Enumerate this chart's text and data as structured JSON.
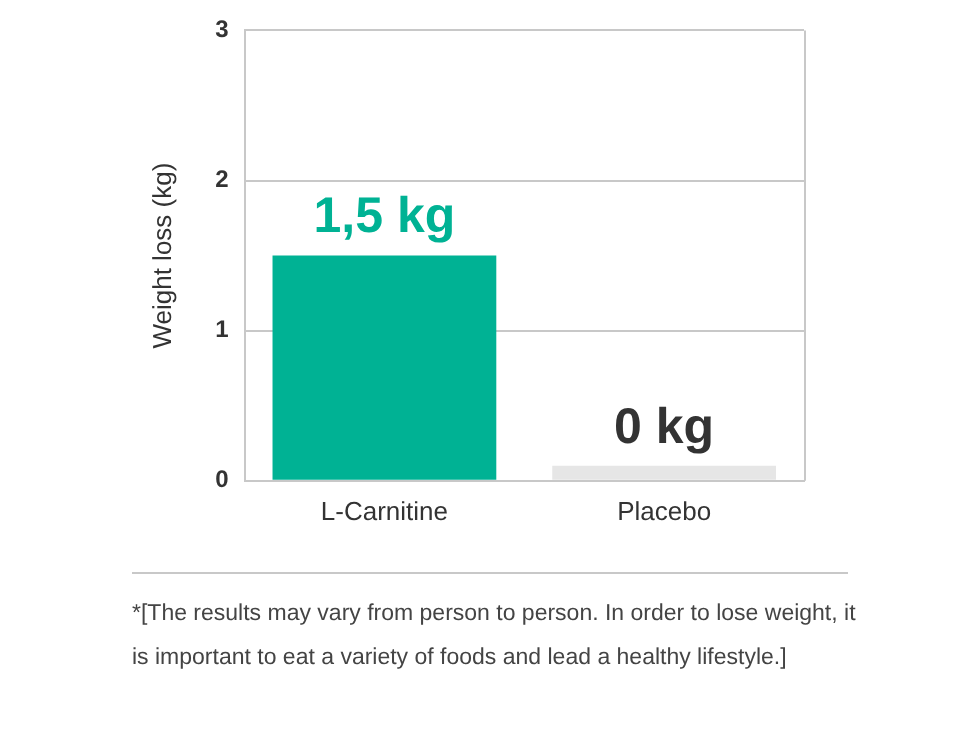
{
  "chart_data": {
    "type": "bar",
    "ylabel": "Weight loss (kg)",
    "categories": [
      "L-Carnitine",
      "Placebo"
    ],
    "values": [
      1.5,
      0.1
    ],
    "colors": [
      "#00b294",
      "#e6e6e6"
    ],
    "value_labels": [
      "1,5 kg",
      "0 kg"
    ],
    "ylim": [
      0,
      3
    ],
    "yticks": [
      0,
      1,
      2,
      3
    ],
    "grid": "y",
    "legend": false,
    "annotations": [
      "*[The results may vary from person to person. In order to lose weight, it is important to eat a variety of foods and lead a healthy lifestyle.]"
    ]
  }
}
